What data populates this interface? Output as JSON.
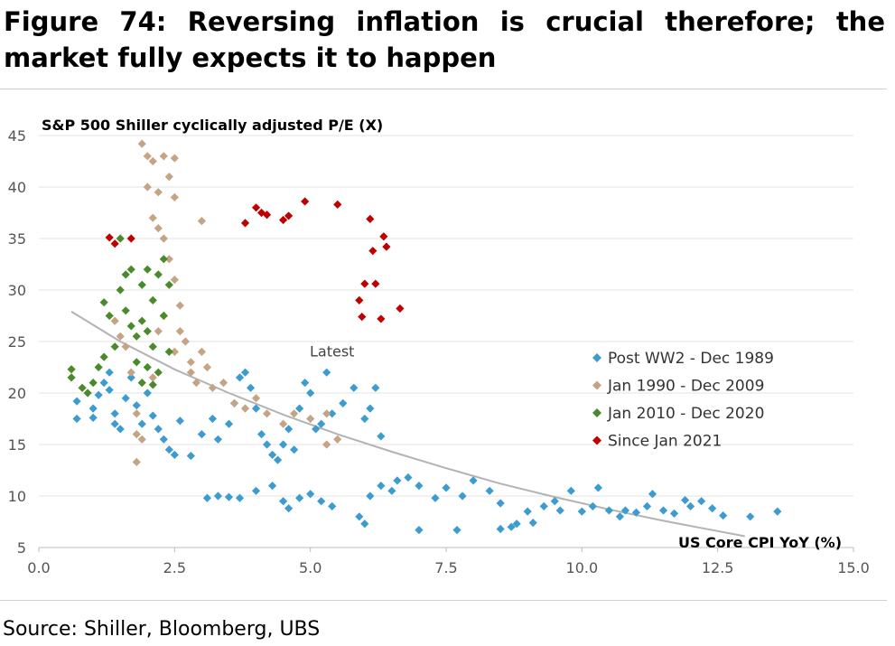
{
  "figure": {
    "title": "Figure 74: Reversing inflation is crucial therefore; the market fully expects it to happen",
    "source": "Source: Shiller, Bloomberg, UBS"
  },
  "chart_data": {
    "type": "scatter",
    "title": "",
    "ylabel": "S&P 500 Shiller cyclically adjusted P/E (X)",
    "xlabel": "US Core CPI YoY (%)",
    "xlim": [
      0,
      15
    ],
    "ylim": [
      5,
      45
    ],
    "x_ticks": [
      "0.0",
      "2.5",
      "5.0",
      "7.5",
      "10.0",
      "12.5",
      "15.0"
    ],
    "y_ticks": [
      "5",
      "10",
      "15",
      "20",
      "25",
      "30",
      "35",
      "40",
      "45"
    ],
    "grid": "horizontal",
    "legend_position": "right",
    "annotation": {
      "text": "Latest",
      "x": 5.4,
      "y": 24.0
    },
    "trendline": {
      "x": [
        0.6,
        1.5,
        2.5,
        3.5,
        4.5,
        5.5,
        6.5,
        7.5,
        8.5,
        9.5,
        10.5,
        11.5,
        12.5,
        13.0
      ],
      "y": [
        27.9,
        25.0,
        22.3,
        20.0,
        17.9,
        16.0,
        14.3,
        12.7,
        11.2,
        9.9,
        8.7,
        7.6,
        6.6,
        6.1
      ]
    },
    "series": [
      {
        "name": "Post WW2 - Dec 1989",
        "color": "#3d9ccf",
        "points": [
          [
            0.7,
            17.5
          ],
          [
            0.7,
            19.2
          ],
          [
            1.0,
            18.5
          ],
          [
            1.0,
            17.6
          ],
          [
            1.1,
            19.8
          ],
          [
            1.2,
            21.0
          ],
          [
            1.3,
            22.0
          ],
          [
            1.3,
            20.3
          ],
          [
            1.4,
            18.0
          ],
          [
            1.4,
            17.0
          ],
          [
            1.5,
            16.5
          ],
          [
            1.6,
            19.5
          ],
          [
            1.7,
            21.5
          ],
          [
            1.8,
            18.8
          ],
          [
            1.9,
            17.0
          ],
          [
            2.0,
            20.0
          ],
          [
            2.1,
            17.8
          ],
          [
            2.2,
            16.5
          ],
          [
            2.3,
            15.5
          ],
          [
            2.4,
            14.5
          ],
          [
            2.5,
            14.0
          ],
          [
            2.6,
            17.3
          ],
          [
            2.8,
            13.9
          ],
          [
            3.0,
            16.0
          ],
          [
            3.2,
            17.5
          ],
          [
            3.3,
            15.5
          ],
          [
            3.5,
            17.0
          ],
          [
            3.6,
            19.0
          ],
          [
            3.7,
            21.5
          ],
          [
            3.8,
            22.0
          ],
          [
            3.9,
            20.5
          ],
          [
            4.0,
            18.5
          ],
          [
            4.1,
            16.0
          ],
          [
            4.2,
            15.0
          ],
          [
            4.3,
            14.0
          ],
          [
            4.4,
            13.5
          ],
          [
            4.5,
            15.0
          ],
          [
            4.6,
            16.5
          ],
          [
            4.7,
            14.5
          ],
          [
            4.8,
            18.5
          ],
          [
            4.9,
            21.0
          ],
          [
            5.0,
            20.0
          ],
          [
            5.1,
            16.5
          ],
          [
            5.2,
            17.0
          ],
          [
            5.3,
            22.0
          ],
          [
            5.4,
            18.0
          ],
          [
            5.6,
            19.0
          ],
          [
            5.8,
            20.5
          ],
          [
            6.0,
            17.5
          ],
          [
            6.1,
            18.5
          ],
          [
            6.2,
            20.5
          ],
          [
            6.3,
            15.8
          ],
          [
            3.1,
            9.8
          ],
          [
            3.3,
            10.0
          ],
          [
            3.5,
            9.9
          ],
          [
            3.7,
            9.8
          ],
          [
            4.0,
            10.5
          ],
          [
            4.3,
            11.0
          ],
          [
            4.5,
            9.5
          ],
          [
            4.6,
            8.8
          ],
          [
            4.8,
            9.8
          ],
          [
            5.0,
            10.2
          ],
          [
            5.2,
            9.5
          ],
          [
            5.4,
            9.0
          ],
          [
            5.9,
            8.0
          ],
          [
            6.0,
            7.3
          ],
          [
            6.1,
            10.0
          ],
          [
            6.3,
            11.0
          ],
          [
            6.5,
            10.5
          ],
          [
            6.6,
            11.5
          ],
          [
            6.8,
            11.8
          ],
          [
            7.0,
            11.0
          ],
          [
            7.0,
            6.7
          ],
          [
            7.3,
            9.8
          ],
          [
            7.5,
            10.8
          ],
          [
            7.7,
            6.7
          ],
          [
            7.8,
            10.0
          ],
          [
            8.0,
            11.5
          ],
          [
            8.3,
            10.5
          ],
          [
            8.5,
            9.3
          ],
          [
            8.5,
            6.8
          ],
          [
            8.7,
            7.0
          ],
          [
            8.8,
            7.3
          ],
          [
            9.0,
            8.5
          ],
          [
            9.1,
            7.4
          ],
          [
            9.3,
            9.0
          ],
          [
            9.5,
            9.5
          ],
          [
            9.6,
            8.6
          ],
          [
            9.8,
            10.5
          ],
          [
            10.0,
            8.5
          ],
          [
            10.2,
            9.0
          ],
          [
            10.3,
            10.8
          ],
          [
            10.5,
            8.6
          ],
          [
            10.7,
            8.0
          ],
          [
            10.8,
            8.6
          ],
          [
            11.0,
            8.4
          ],
          [
            11.2,
            9.0
          ],
          [
            11.3,
            10.2
          ],
          [
            11.5,
            8.6
          ],
          [
            11.7,
            8.3
          ],
          [
            11.9,
            9.6
          ],
          [
            12.0,
            9.0
          ],
          [
            12.2,
            9.5
          ],
          [
            12.4,
            8.8
          ],
          [
            12.6,
            8.1
          ],
          [
            13.1,
            8.0
          ],
          [
            13.6,
            8.5
          ]
        ]
      },
      {
        "name": "Jan 1990 - Dec 2009",
        "color": "#c4a484",
        "points": [
          [
            1.4,
            27.0
          ],
          [
            1.5,
            25.5
          ],
          [
            1.6,
            24.5
          ],
          [
            1.7,
            22.0
          ],
          [
            1.8,
            18.0
          ],
          [
            1.8,
            16.0
          ],
          [
            1.8,
            13.3
          ],
          [
            1.9,
            15.5
          ],
          [
            1.9,
            44.2
          ],
          [
            2.0,
            43.0
          ],
          [
            2.0,
            40.0
          ],
          [
            2.1,
            42.5
          ],
          [
            2.1,
            37.0
          ],
          [
            2.2,
            36.0
          ],
          [
            2.2,
            39.5
          ],
          [
            2.3,
            43.0
          ],
          [
            2.3,
            35.0
          ],
          [
            2.4,
            41.0
          ],
          [
            2.5,
            42.8
          ],
          [
            2.5,
            39.0
          ],
          [
            2.4,
            33.0
          ],
          [
            2.5,
            31.0
          ],
          [
            2.6,
            28.5
          ],
          [
            2.6,
            26.0
          ],
          [
            2.7,
            25.0
          ],
          [
            2.8,
            23.0
          ],
          [
            2.9,
            21.0
          ],
          [
            3.0,
            24.0
          ],
          [
            3.0,
            36.7
          ],
          [
            3.2,
            20.5
          ],
          [
            3.4,
            21.0
          ],
          [
            3.6,
            19.0
          ],
          [
            3.8,
            18.5
          ],
          [
            4.0,
            19.5
          ],
          [
            4.2,
            18.0
          ],
          [
            4.5,
            17.0
          ],
          [
            4.7,
            18.0
          ],
          [
            5.0,
            17.5
          ],
          [
            5.3,
            18.0
          ],
          [
            5.3,
            15.0
          ],
          [
            5.5,
            15.5
          ],
          [
            2.8,
            22.0
          ],
          [
            3.1,
            22.5
          ],
          [
            2.2,
            26.0
          ],
          [
            2.3,
            27.5
          ],
          [
            2.5,
            24.0
          ],
          [
            2.1,
            21.5
          ]
        ]
      },
      {
        "name": "Jan 2010 - Dec 2020",
        "color": "#4a8a2c",
        "points": [
          [
            0.6,
            21.5
          ],
          [
            0.6,
            22.3
          ],
          [
            0.8,
            20.5
          ],
          [
            0.9,
            20.0
          ],
          [
            1.0,
            21.0
          ],
          [
            1.1,
            22.5
          ],
          [
            1.2,
            23.5
          ],
          [
            1.2,
            28.8
          ],
          [
            1.3,
            27.5
          ],
          [
            1.4,
            24.5
          ],
          [
            1.5,
            30.0
          ],
          [
            1.6,
            28.0
          ],
          [
            1.6,
            31.5
          ],
          [
            1.7,
            32.0
          ],
          [
            1.7,
            26.5
          ],
          [
            1.8,
            25.5
          ],
          [
            1.8,
            23.0
          ],
          [
            1.9,
            21.0
          ],
          [
            1.9,
            30.5
          ],
          [
            2.0,
            32.0
          ],
          [
            2.0,
            26.0
          ],
          [
            2.1,
            29.0
          ],
          [
            2.1,
            24.5
          ],
          [
            2.2,
            31.5
          ],
          [
            2.2,
            22.0
          ],
          [
            2.3,
            33.0
          ],
          [
            2.3,
            27.5
          ],
          [
            2.4,
            24.0
          ],
          [
            2.4,
            30.5
          ],
          [
            1.5,
            35.0
          ],
          [
            1.9,
            27.0
          ],
          [
            2.0,
            22.5
          ],
          [
            2.1,
            20.8
          ]
        ]
      },
      {
        "name": "Since Jan 2021",
        "color": "#c00000",
        "points": [
          [
            1.3,
            35.1
          ],
          [
            1.4,
            34.5
          ],
          [
            1.7,
            35.0
          ],
          [
            3.8,
            36.5
          ],
          [
            4.0,
            38.0
          ],
          [
            4.1,
            37.5
          ],
          [
            4.2,
            37.3
          ],
          [
            4.5,
            36.8
          ],
          [
            4.6,
            37.2
          ],
          [
            4.9,
            38.6
          ],
          [
            5.5,
            38.3
          ],
          [
            5.9,
            29.0
          ],
          [
            5.95,
            27.4
          ],
          [
            6.0,
            30.6
          ],
          [
            6.1,
            36.9
          ],
          [
            6.15,
            33.8
          ],
          [
            6.2,
            30.6
          ],
          [
            6.3,
            27.2
          ],
          [
            6.35,
            35.2
          ],
          [
            6.4,
            34.2
          ],
          [
            6.65,
            28.2
          ]
        ]
      }
    ]
  }
}
